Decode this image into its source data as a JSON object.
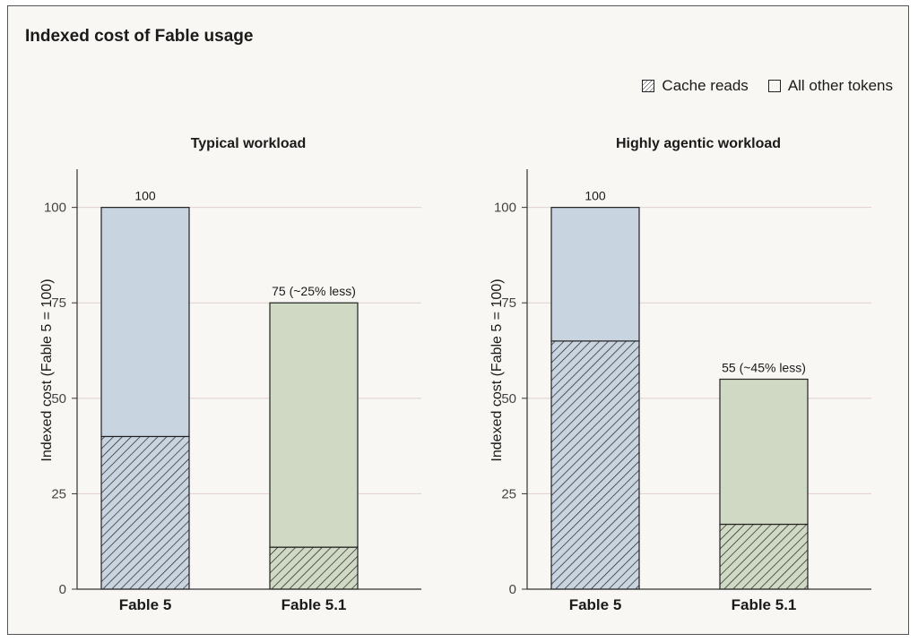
{
  "title": "Indexed cost of Fable usage",
  "legend": [
    {
      "label": "Cache reads",
      "pattern": "hatched"
    },
    {
      "label": "All other tokens",
      "pattern": "solid"
    }
  ],
  "colors": {
    "fable5": "#c9d4e1",
    "fable51": "#d0d9c4",
    "grid": "#e2cfcf",
    "axis": "#333333",
    "hatch": "#222222"
  },
  "chart_data": [
    {
      "type": "bar",
      "stacked": true,
      "title": "Typical workload",
      "categories": [
        "Fable 5",
        "Fable 5.1"
      ],
      "series": [
        {
          "name": "Cache reads",
          "values": [
            40,
            11
          ]
        },
        {
          "name": "All other tokens",
          "values": [
            60,
            64
          ]
        }
      ],
      "totals": [
        100,
        75
      ],
      "bar_labels": [
        "100",
        "75 (~25% less)"
      ],
      "ylabel": "Indexed cost (Fable 5 = 100)",
      "yticks": [
        0,
        25,
        50,
        75,
        100
      ],
      "ylim": [
        0,
        110
      ]
    },
    {
      "type": "bar",
      "stacked": true,
      "title": "Highly agentic workload",
      "categories": [
        "Fable 5",
        "Fable 5.1"
      ],
      "series": [
        {
          "name": "Cache reads",
          "values": [
            65,
            17
          ]
        },
        {
          "name": "All other tokens",
          "values": [
            35,
            38
          ]
        }
      ],
      "totals": [
        100,
        55
      ],
      "bar_labels": [
        "100",
        "55 (~45% less)"
      ],
      "ylabel": "Indexed cost (Fable 5 = 100)",
      "yticks": [
        0,
        25,
        50,
        75,
        100
      ],
      "ylim": [
        0,
        110
      ]
    }
  ]
}
